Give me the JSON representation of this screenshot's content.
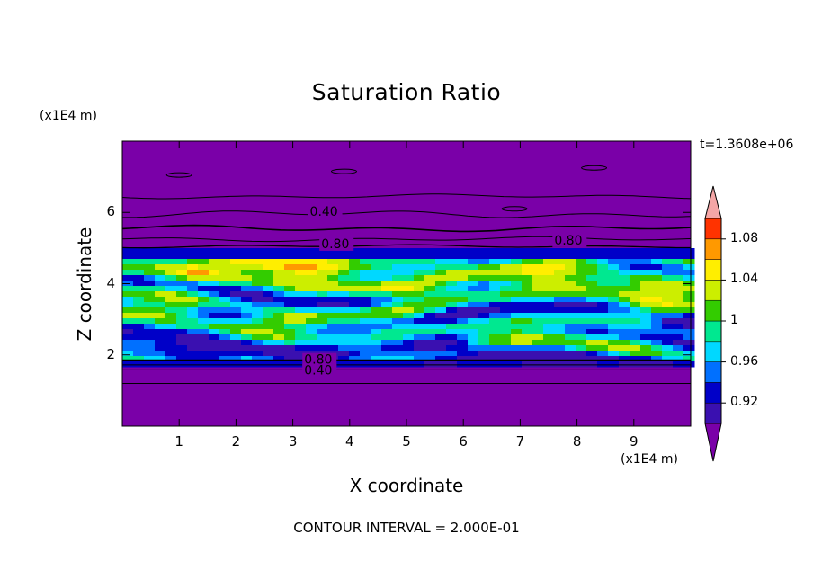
{
  "chart_data": {
    "type": "heatmap",
    "title": "Saturation Ratio",
    "xlabel": "X coordinate",
    "ylabel": "Z coordinate",
    "x_unit_label": "(x1E4 m)",
    "y_unit_label": "(x1E4 m)",
    "time_label": "t=1.3608e+06",
    "footer": "CONTOUR INTERVAL = 2.000E-01",
    "xlim": [
      0,
      10
    ],
    "ylim": [
      0,
      8
    ],
    "x_ticks": [
      "1",
      "2",
      "3",
      "4",
      "5",
      "6",
      "7",
      "8",
      "9"
    ],
    "y_ticks": [
      "2",
      "4",
      "6"
    ],
    "contour_interval": 0.2,
    "colorbar": {
      "labels": [
        "0.92",
        "0.96",
        "1",
        "1.04",
        "1.08"
      ],
      "label_values": [
        0.92,
        0.96,
        1.0,
        1.04,
        1.08
      ],
      "levels": [
        0.9,
        0.92,
        0.94,
        0.96,
        0.98,
        1.0,
        1.02,
        1.04,
        1.06,
        1.08,
        1.1
      ],
      "colors": [
        "#7a00a8",
        "#3a10b0",
        "#0000c8",
        "#0070ff",
        "#00d8ff",
        "#00e890",
        "#33cc00",
        "#ccee00",
        "#ffee00",
        "#ff9900",
        "#ff3300",
        "#f4a6a6"
      ]
    },
    "contour_labels": [
      {
        "text": "0.40",
        "x": 3.3,
        "z": 5.9
      },
      {
        "text": "0.80",
        "x": 3.5,
        "z": 5.0
      },
      {
        "text": "0.80",
        "x": 7.6,
        "z": 5.1
      },
      {
        "text": "0.80",
        "x": 3.2,
        "z": 1.75
      },
      {
        "text": "0.40",
        "x": 3.2,
        "z": 1.45
      }
    ],
    "moist_layer_z": [
      1.8,
      5.0
    ],
    "background_color": "#7a00a8"
  }
}
